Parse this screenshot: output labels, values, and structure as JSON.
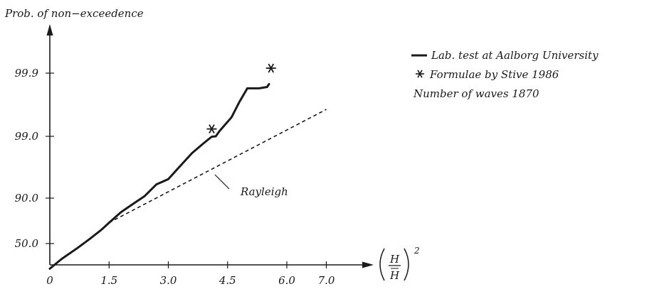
{
  "chart_data": {
    "type": "line",
    "ylabel": "Prob. of non−exceedence",
    "xlabel_symbol": "H",
    "xlabel_symbol_bar": "H",
    "xlabel_exponent": "2",
    "x_ticks": [
      "0",
      "1.5",
      "3.0",
      "4.5",
      "6.0",
      "7.0"
    ],
    "y_ticks": [
      "50.0",
      "90.0",
      "99.0",
      "99.9"
    ],
    "xlim": [
      0,
      7.5
    ],
    "y_scale": "Rayleigh probability (exceedence, log of -ln(1-P))",
    "grid": false,
    "legend_position": "top-right",
    "legend": {
      "line_entry": "Lab. test at Aalborg University",
      "star_entry": "Formulae by Stive 1986",
      "note": "Number of waves 1870"
    },
    "annotation": "Rayleigh",
    "series": [
      {
        "name": "Lab. test at Aalborg University",
        "style": "solid",
        "points": [
          [
            0,
            30
          ],
          [
            0.3,
            37
          ],
          [
            0.7,
            46
          ],
          [
            1.0,
            54
          ],
          [
            1.3,
            63
          ],
          [
            1.5,
            70
          ],
          [
            1.8,
            79.5
          ],
          [
            2.1,
            86
          ],
          [
            2.4,
            90.5
          ],
          [
            2.7,
            93.2
          ],
          [
            3.0,
            94.2
          ],
          [
            3.3,
            96.3
          ],
          [
            3.6,
            97.8
          ],
          [
            3.9,
            98.6
          ],
          [
            4.1,
            98.98
          ],
          [
            4.2,
            99.0
          ],
          [
            4.3,
            99.15
          ],
          [
            4.6,
            99.45
          ],
          [
            4.8,
            99.68
          ],
          [
            5.0,
            99.81
          ],
          [
            5.3,
            99.81
          ],
          [
            5.5,
            99.82
          ],
          [
            5.55,
            99.84
          ]
        ]
      },
      {
        "name": "Rayleigh",
        "style": "dashed",
        "points": [
          [
            1.5,
            70
          ],
          [
            7.0,
            99.58
          ]
        ]
      },
      {
        "name": "Formulae by Stive 1986",
        "style": "marker-star",
        "points": [
          [
            4.1,
            99.2
          ],
          [
            5.6,
            99.92
          ]
        ]
      }
    ]
  }
}
